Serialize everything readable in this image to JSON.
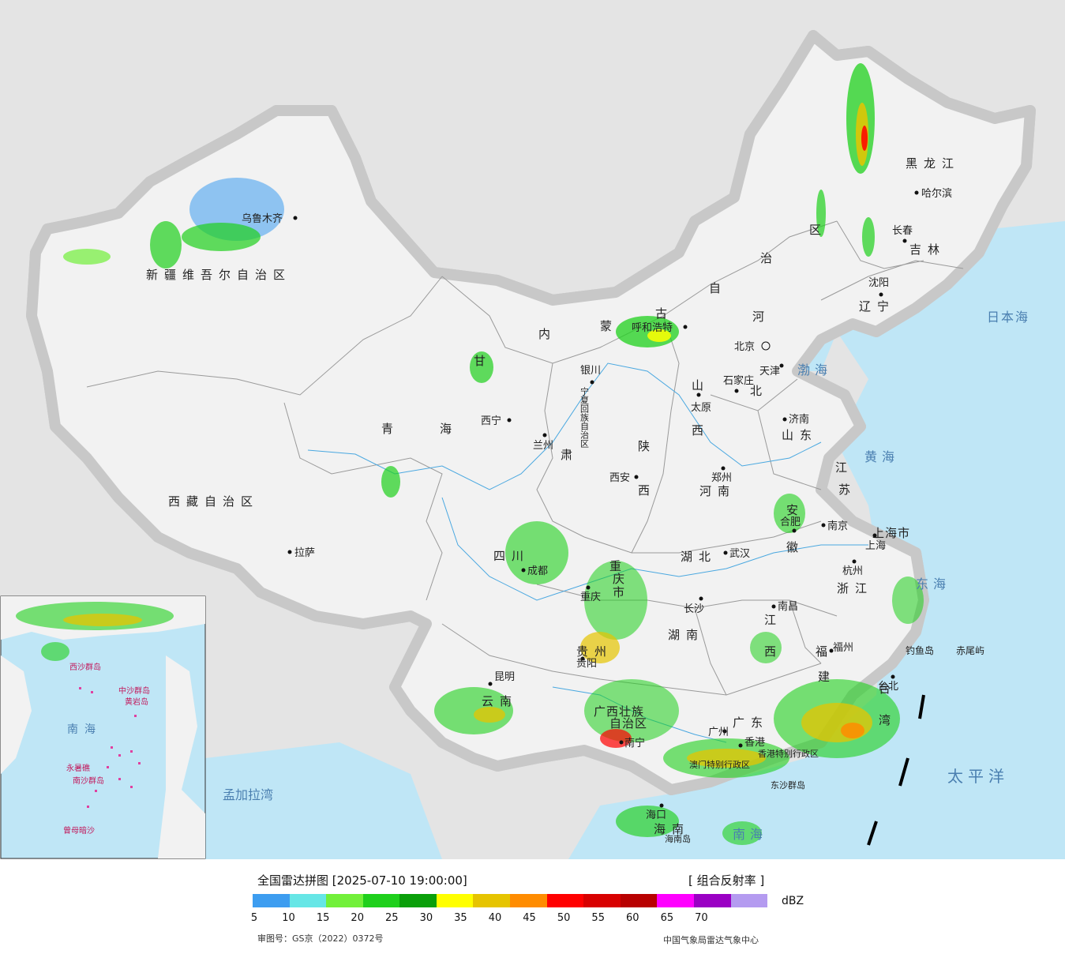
{
  "map": {
    "provinces": {
      "xinjiang": "新疆维吾尔自治区",
      "xizang": "西藏自治区",
      "qinghai_1": "青",
      "qinghai_2": "海",
      "gansu_1": "甘",
      "gansu_2": "肃",
      "neimenggu_1": "内",
      "neimenggu_2": "蒙",
      "neimenggu_3": "古",
      "neimenggu_4": "自",
      "neimenggu_5": "治",
      "neimenggu_6": "区",
      "heilongjiang": "黑龙江",
      "jilin": "吉林",
      "liaoning": "辽宁",
      "hebei_1": "河",
      "hebei_2": "北",
      "shanxi_1": "山",
      "shanxi_2": "西",
      "shaanxi_1": "陕",
      "shaanxi_2": "西",
      "shandong": "山东",
      "henan": "河南",
      "jiangsu_1": "江",
      "jiangsu_2": "苏",
      "anhui_1": "安",
      "anhui_2": "徽",
      "hubei": "湖北",
      "sichuan": "四川",
      "chongqing_1": "重",
      "chongqing_2": "庆",
      "chongqing_3": "市",
      "hunan": "湖南",
      "jiangxi_1": "江",
      "jiangxi_2": "西",
      "zhejiang": "浙江",
      "fujian_1": "福",
      "fujian_2": "建",
      "guizhou": "贵州",
      "yunnan": "云南",
      "guangxi_1": "广西壮族",
      "guangxi_2": "自治区",
      "guangdong": "广东",
      "hainan": "海南",
      "taiwan_1": "台",
      "taiwan_2": "湾",
      "shanghai": "上海市",
      "ningxia": "宁夏回族自治区"
    },
    "cities": {
      "urumqi": "乌鲁木齐",
      "lhasa": "拉萨",
      "xining": "西宁",
      "lanzhou": "兰州",
      "yinchuan": "银川",
      "hohhot": "呼和浩特",
      "beijing": "北京",
      "tianjin": "天津",
      "shijiazhuang": "石家庄",
      "taiyuan": "太原",
      "jinan": "济南",
      "zhengzhou": "郑州",
      "xian": "西安",
      "harbin": "哈尔滨",
      "changchun": "长春",
      "shenyang": "沈阳",
      "nanjing": "南京",
      "hefei": "合肥",
      "shanghai": "上海",
      "hangzhou": "杭州",
      "wuhan": "武汉",
      "chengdu": "成都",
      "chongqing": "重庆",
      "changsha": "长沙",
      "nanchang": "南昌",
      "fuzhou": "福州",
      "taibei": "台北",
      "guiyang": "贵阳",
      "kunming": "昆明",
      "nanning": "南宁",
      "guangzhou": "广州",
      "xianggang": "香港",
      "haikou": "海口",
      "aomen_label": "澳门特别行政区",
      "xianggang_label": "香港特别行政区"
    },
    "seas": {
      "bohai": "渤海",
      "huanghai": "黄海",
      "donghai": "东海",
      "nanhai": "南海",
      "taipingyang": "太平洋",
      "ribenhai": "日本海",
      "mengjialawan": "孟加拉湾"
    },
    "islands": {
      "diaoyudao": "钓鱼岛",
      "chiweiyu": "赤尾屿",
      "hainandao": "海南岛",
      "dongshaqundao": "东沙群岛"
    },
    "inset": {
      "nanhai": "南海",
      "xisha": "西沙群岛",
      "zhongsha": "中沙群岛",
      "huangyandao": "黄岩岛",
      "nansha": "南沙群岛",
      "zengmuansha": "曾母暗沙",
      "yongshujiao": "永暑礁"
    }
  },
  "legend": {
    "title": "全国雷达拼图 [2025-07-10 19:00:00]",
    "type": "[ 组合反射率 ]",
    "unit": "dBZ",
    "colors": [
      "#3d9df0",
      "#66e6e6",
      "#72f03a",
      "#1fd01c",
      "#0a9f0a",
      "#ffff00",
      "#e6c400",
      "#ff8c00",
      "#ff0000",
      "#d80000",
      "#b80000",
      "#ff00ff",
      "#9a00c4",
      "#b49bf0"
    ],
    "ticks": [
      "5",
      "10",
      "15",
      "20",
      "25",
      "30",
      "35",
      "40",
      "45",
      "50",
      "55",
      "60",
      "65",
      "70"
    ],
    "approval": "审图号：GS京（2022）0372号",
    "source": "中国气象局雷达气象中心"
  }
}
